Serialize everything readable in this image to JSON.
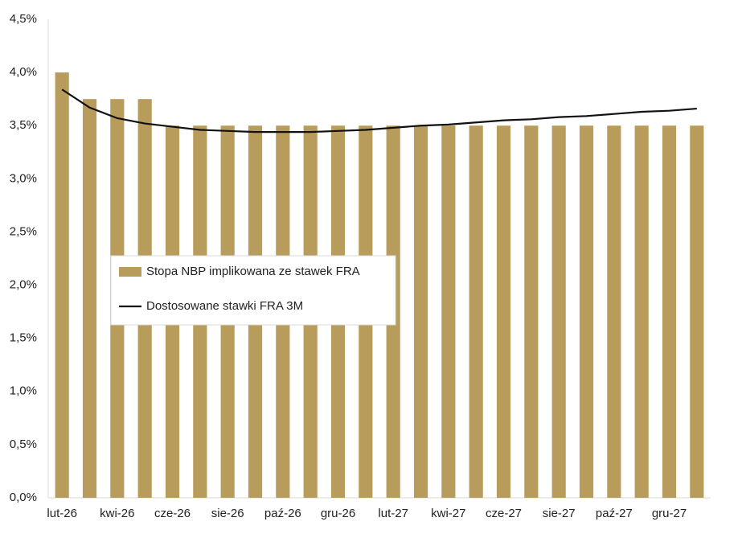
{
  "chart_data": {
    "type": "bar_line",
    "categories": [
      "lut-26",
      null,
      "kwi-26",
      null,
      "cze-26",
      null,
      "sie-26",
      null,
      "paź-26",
      null,
      "gru-26",
      null,
      "lut-27",
      null,
      "kwi-27",
      null,
      "cze-27",
      null,
      "sie-27",
      null,
      "paź-27",
      null,
      "gru-27",
      null
    ],
    "series": [
      {
        "name": "Stopa NBP implikowana ze stawek FRA",
        "type": "bar",
        "color": "#b89c5c",
        "values": [
          4.0,
          3.75,
          3.75,
          3.75,
          3.5,
          3.5,
          3.5,
          3.5,
          3.5,
          3.5,
          3.5,
          3.5,
          3.5,
          3.5,
          3.5,
          3.5,
          3.5,
          3.5,
          3.5,
          3.5,
          3.5,
          3.5,
          3.5,
          3.5
        ]
      },
      {
        "name": "Dostosowane stawki FRA 3M",
        "type": "line",
        "color": "#111111",
        "values": [
          3.84,
          3.67,
          3.57,
          3.52,
          3.49,
          3.46,
          3.45,
          3.44,
          3.44,
          3.44,
          3.45,
          3.46,
          3.48,
          3.5,
          3.51,
          3.53,
          3.55,
          3.56,
          3.58,
          3.59,
          3.61,
          3.63,
          3.64,
          3.66
        ]
      }
    ],
    "ylim": [
      0,
      4.5
    ],
    "yticks": [
      {
        "value": 0,
        "label": "0,0%"
      },
      {
        "value": 0.5,
        "label": "0,5%"
      },
      {
        "value": 1,
        "label": "1,0%"
      },
      {
        "value": 1.5,
        "label": "1,5%"
      },
      {
        "value": 2,
        "label": "2,0%"
      },
      {
        "value": 2.5,
        "label": "2,5%"
      },
      {
        "value": 3,
        "label": "3,0%"
      },
      {
        "value": 3.5,
        "label": "3,5%"
      },
      {
        "value": 4,
        "label": "4,0%"
      },
      {
        "value": 4.5,
        "label": "4,5%"
      }
    ],
    "grid": false,
    "legend": "center-left"
  }
}
